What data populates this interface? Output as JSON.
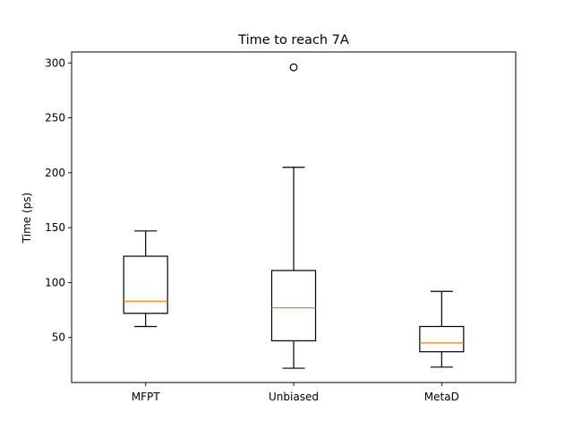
{
  "chart_data": {
    "type": "box",
    "title": "Time to reach 7A",
    "xlabel": "",
    "ylabel": "Time (ps)",
    "ylim": [
      9,
      310
    ],
    "yticks": [
      50,
      100,
      150,
      200,
      250,
      300
    ],
    "grid": false,
    "colors": {
      "box": "#000000",
      "median": "#ff7f0e",
      "background": "#ffffff"
    },
    "boxes": [
      {
        "label": "MFPT",
        "whisker_low": 60,
        "q1": 72,
        "median": 83,
        "q3": 124,
        "whisker_high": 147,
        "outliers": []
      },
      {
        "label": "Unbiased",
        "whisker_low": 22,
        "q1": 47,
        "median": 77,
        "q3": 111,
        "whisker_high": 205,
        "outliers": [
          296
        ]
      },
      {
        "label": "MetaD",
        "whisker_low": 23,
        "q1": 37,
        "median": 45,
        "q3": 60,
        "whisker_high": 92,
        "outliers": []
      }
    ]
  }
}
